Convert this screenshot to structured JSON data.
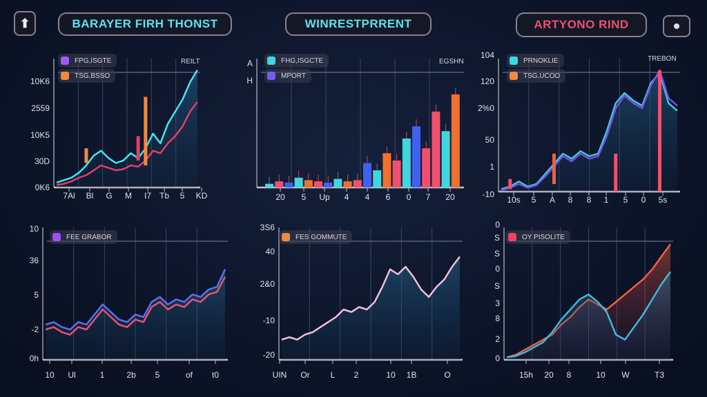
{
  "header": {
    "back_icon": "arrow-up-icon",
    "tabs": [
      {
        "label": "BARAYER FIRH THONST",
        "color": "#5fe3e6"
      },
      {
        "label": "WINRESTPRRENT",
        "color": "#5fe3e6"
      },
      {
        "label": "ARTYONO RIND",
        "color": "#f0506e"
      }
    ],
    "menu_icon": "dot-icon"
  },
  "chart_data": [
    {
      "type": "line",
      "legend": [
        {
          "name": "FPG,ISGTE",
          "color": "#a05cf0"
        },
        {
          "name": "TSG,BSSO",
          "color": "#f08a40"
        }
      ],
      "corner_label": "REILT",
      "yticks": [
        "10K6",
        "2559",
        "10K5",
        "30D",
        "0K6"
      ],
      "xticks": [
        "7Al",
        "Bl",
        "G",
        "M",
        "I7",
        "Tb",
        "5",
        "KD"
      ],
      "ylim": [
        0,
        100
      ],
      "series": [
        {
          "color": "#46e6ee",
          "values": [
            4,
            6,
            8,
            12,
            18,
            26,
            30,
            24,
            20,
            22,
            28,
            24,
            32,
            44,
            36,
            52,
            62,
            72,
            86,
            96
          ]
        },
        {
          "color": "#e0406a",
          "values": [
            2,
            3,
            5,
            8,
            10,
            14,
            18,
            16,
            14,
            15,
            18,
            17,
            22,
            30,
            28,
            36,
            42,
            50,
            62,
            70
          ]
        }
      ],
      "bars": [
        {
          "x": 4,
          "low": 20,
          "high": 32,
          "color": "#f08a40"
        },
        {
          "x": 11,
          "low": 22,
          "high": 42,
          "color": "#e0406a"
        },
        {
          "x": 12,
          "low": 18,
          "high": 74,
          "color": "#f08a40"
        }
      ]
    },
    {
      "type": "bar",
      "legend": [
        {
          "name": "FHG,ISGCTE",
          "color": "#40d6e0"
        },
        {
          "name": "MPORT",
          "color": "#7060f0"
        }
      ],
      "corner_label": "EGSHN",
      "yticks": [
        "A",
        "H"
      ],
      "xticks": [
        "20",
        "5",
        "Up",
        "4",
        "4",
        "6",
        "0",
        "7",
        "20"
      ],
      "ylim": [
        0,
        100
      ],
      "values": [
        3,
        5,
        4,
        8,
        6,
        5,
        4,
        7,
        5,
        6,
        20,
        14,
        28,
        22,
        40,
        50,
        32,
        62,
        46,
        76
      ],
      "colors": [
        "#40d6e0",
        "#f0506e",
        "#4060f0",
        "#40d6e0",
        "#f07030",
        "#f0506e",
        "#4060f0",
        "#40d6e0",
        "#f07030",
        "#f0506e",
        "#4060f0",
        "#40d6e0",
        "#f07030",
        "#f0506e",
        "#40d6e0",
        "#4060f0",
        "#f0506e",
        "#f0506e",
        "#40d6e0",
        "#f07030"
      ]
    },
    {
      "type": "line",
      "legend": [
        {
          "name": "PRNOKLIE",
          "color": "#40d6e0"
        },
        {
          "name": "TSG,UCOO",
          "color": "#f08a40"
        }
      ],
      "corner_label": "TREBON",
      "yticks": [
        "104",
        "120",
        "2%0",
        "50",
        "1",
        "-10"
      ],
      "xticks": [
        "10s",
        "5",
        "A",
        "8",
        "8",
        "1",
        "5",
        "0",
        "5s"
      ],
      "ylim": [
        0,
        100
      ],
      "series": [
        {
          "color": "#3ec8e0",
          "values": [
            2,
            4,
            8,
            4,
            6,
            14,
            22,
            30,
            26,
            32,
            28,
            30,
            48,
            70,
            78,
            72,
            68,
            86,
            94,
            70,
            64
          ]
        },
        {
          "color": "#7a4de0",
          "values": [
            1,
            3,
            6,
            3,
            5,
            12,
            20,
            28,
            24,
            30,
            26,
            28,
            44,
            66,
            76,
            70,
            66,
            84,
            96,
            74,
            68
          ]
        }
      ],
      "bars": [
        {
          "x": 1,
          "low": 2,
          "high": 10,
          "color": "#f0506e"
        },
        {
          "x": 6,
          "low": 6,
          "high": 30,
          "color": "#f06040"
        },
        {
          "x": 13,
          "low": 0,
          "high": 30,
          "color": "#f0506e"
        },
        {
          "x": 18,
          "low": 0,
          "high": 96,
          "color": "#f0506e"
        }
      ]
    },
    {
      "type": "line",
      "legend": [
        {
          "name": "FEE GRABOR",
          "color": "#a050f0"
        }
      ],
      "yticks": [
        "10",
        "36",
        "5",
        "-2",
        "0h"
      ],
      "xticks": [
        "10",
        "Ul",
        "1",
        "2b",
        "5",
        "of",
        "t0"
      ],
      "ylim": [
        0,
        100
      ],
      "series": [
        {
          "color": "#5a70f0",
          "values": [
            28,
            30,
            26,
            24,
            30,
            28,
            36,
            44,
            38,
            32,
            30,
            36,
            34,
            46,
            50,
            44,
            48,
            46,
            52,
            50,
            56,
            58,
            72
          ]
        },
        {
          "color": "#f05070",
          "values": [
            24,
            26,
            22,
            20,
            26,
            24,
            32,
            40,
            34,
            28,
            26,
            32,
            30,
            42,
            46,
            40,
            44,
            42,
            48,
            46,
            52,
            54,
            66
          ]
        }
      ]
    },
    {
      "type": "line",
      "legend": [
        {
          "name": "FES GOMMUTE",
          "color": "#f08a40"
        }
      ],
      "yticks": [
        "3S6",
        "40",
        "2&0",
        "-10",
        "-20"
      ],
      "xticks": [
        "UIN",
        "Or",
        "L",
        "2",
        "10",
        "1B",
        "O"
      ],
      "ylim": [
        0,
        100
      ],
      "series": [
        {
          "color": "#f0c0d8",
          "values": [
            16,
            18,
            16,
            20,
            22,
            26,
            30,
            34,
            40,
            38,
            42,
            40,
            46,
            58,
            72,
            68,
            74,
            66,
            56,
            50,
            58,
            64,
            74,
            82
          ]
        }
      ]
    },
    {
      "type": "area",
      "legend": [
        {
          "name": "OY PISOLITE",
          "color": "#f04060"
        }
      ],
      "yticks": [
        "0",
        "S",
        "S",
        "0",
        "S",
        "3",
        "8",
        "2",
        "0"
      ],
      "xticks": [
        "15h",
        "20",
        "8",
        "10",
        "W",
        "T3"
      ],
      "ylim": [
        0,
        100
      ],
      "series": [
        {
          "color": "#f06040",
          "values": [
            2,
            4,
            8,
            12,
            16,
            20,
            28,
            34,
            42,
            48,
            44,
            40,
            46,
            52,
            58,
            64,
            72,
            82,
            92
          ]
        },
        {
          "color": "#40b8e0",
          "values": [
            2,
            3,
            6,
            10,
            14,
            22,
            32,
            40,
            48,
            52,
            46,
            38,
            20,
            16,
            26,
            36,
            48,
            60,
            70
          ]
        }
      ]
    }
  ]
}
